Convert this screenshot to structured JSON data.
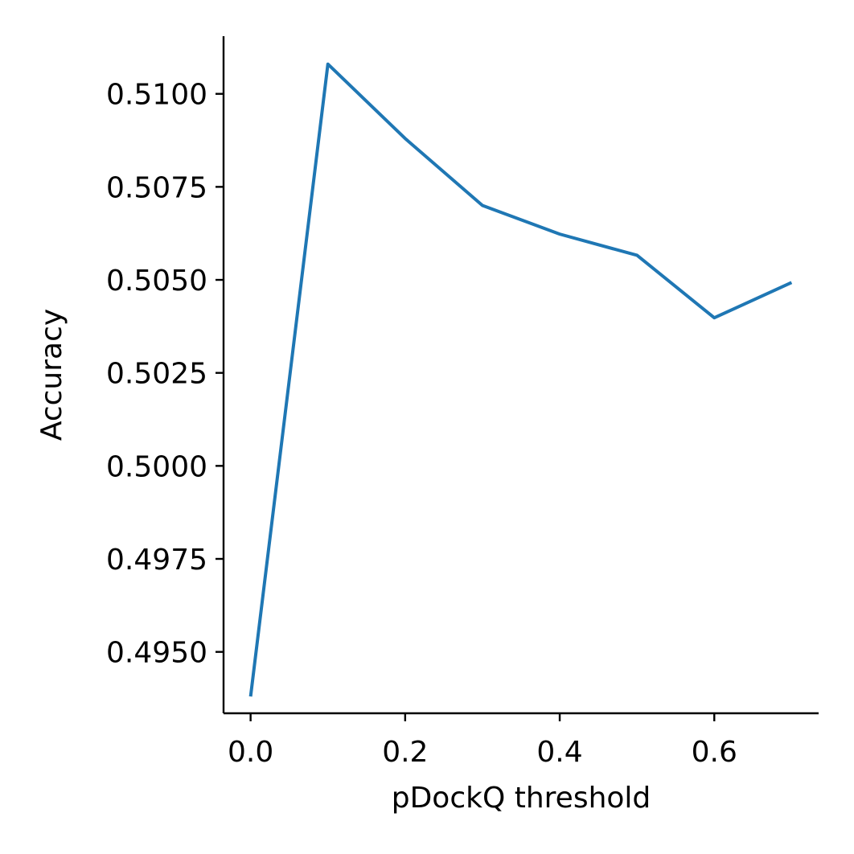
{
  "chart_data": {
    "type": "line",
    "title": "",
    "xlabel": "pDockQ threshold",
    "ylabel": "Accuracy",
    "xlim": [
      -0.035,
      0.735
    ],
    "ylim": [
      0.49335,
      0.51155
    ],
    "grid": false,
    "legend": "none",
    "x_ticks": [
      0.0,
      0.2,
      0.4,
      0.6
    ],
    "x_tick_labels": [
      "0.0",
      "0.2",
      "0.4",
      "0.6"
    ],
    "y_ticks": [
      0.495,
      0.4975,
      0.5,
      0.5025,
      0.505,
      0.5075,
      0.51
    ],
    "y_tick_labels": [
      "0.4950",
      "0.4975",
      "0.5000",
      "0.5025",
      "0.5050",
      "0.5075",
      "0.5100"
    ],
    "series": [
      {
        "color": "#1f77b4",
        "x": [
          0.0,
          0.1,
          0.2,
          0.3,
          0.4,
          0.5,
          0.6,
          0.7
        ],
        "y": [
          0.4938,
          0.5108,
          0.5088,
          0.507,
          0.50623,
          0.50566,
          0.50398,
          0.50493
        ]
      }
    ]
  }
}
